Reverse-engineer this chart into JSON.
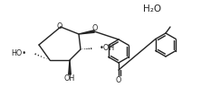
{
  "bg_color": "#ffffff",
  "line_color": "#222222",
  "lw": 1.0,
  "lw_thick": 2.0,
  "fig_width": 2.22,
  "fig_height": 0.97,
  "dpi": 100,
  "h2o": "H₂O",
  "fs": 5.8,
  "fs_h2o": 7.5,
  "xlim": [
    0,
    222
  ],
  "ylim": [
    0,
    97
  ]
}
